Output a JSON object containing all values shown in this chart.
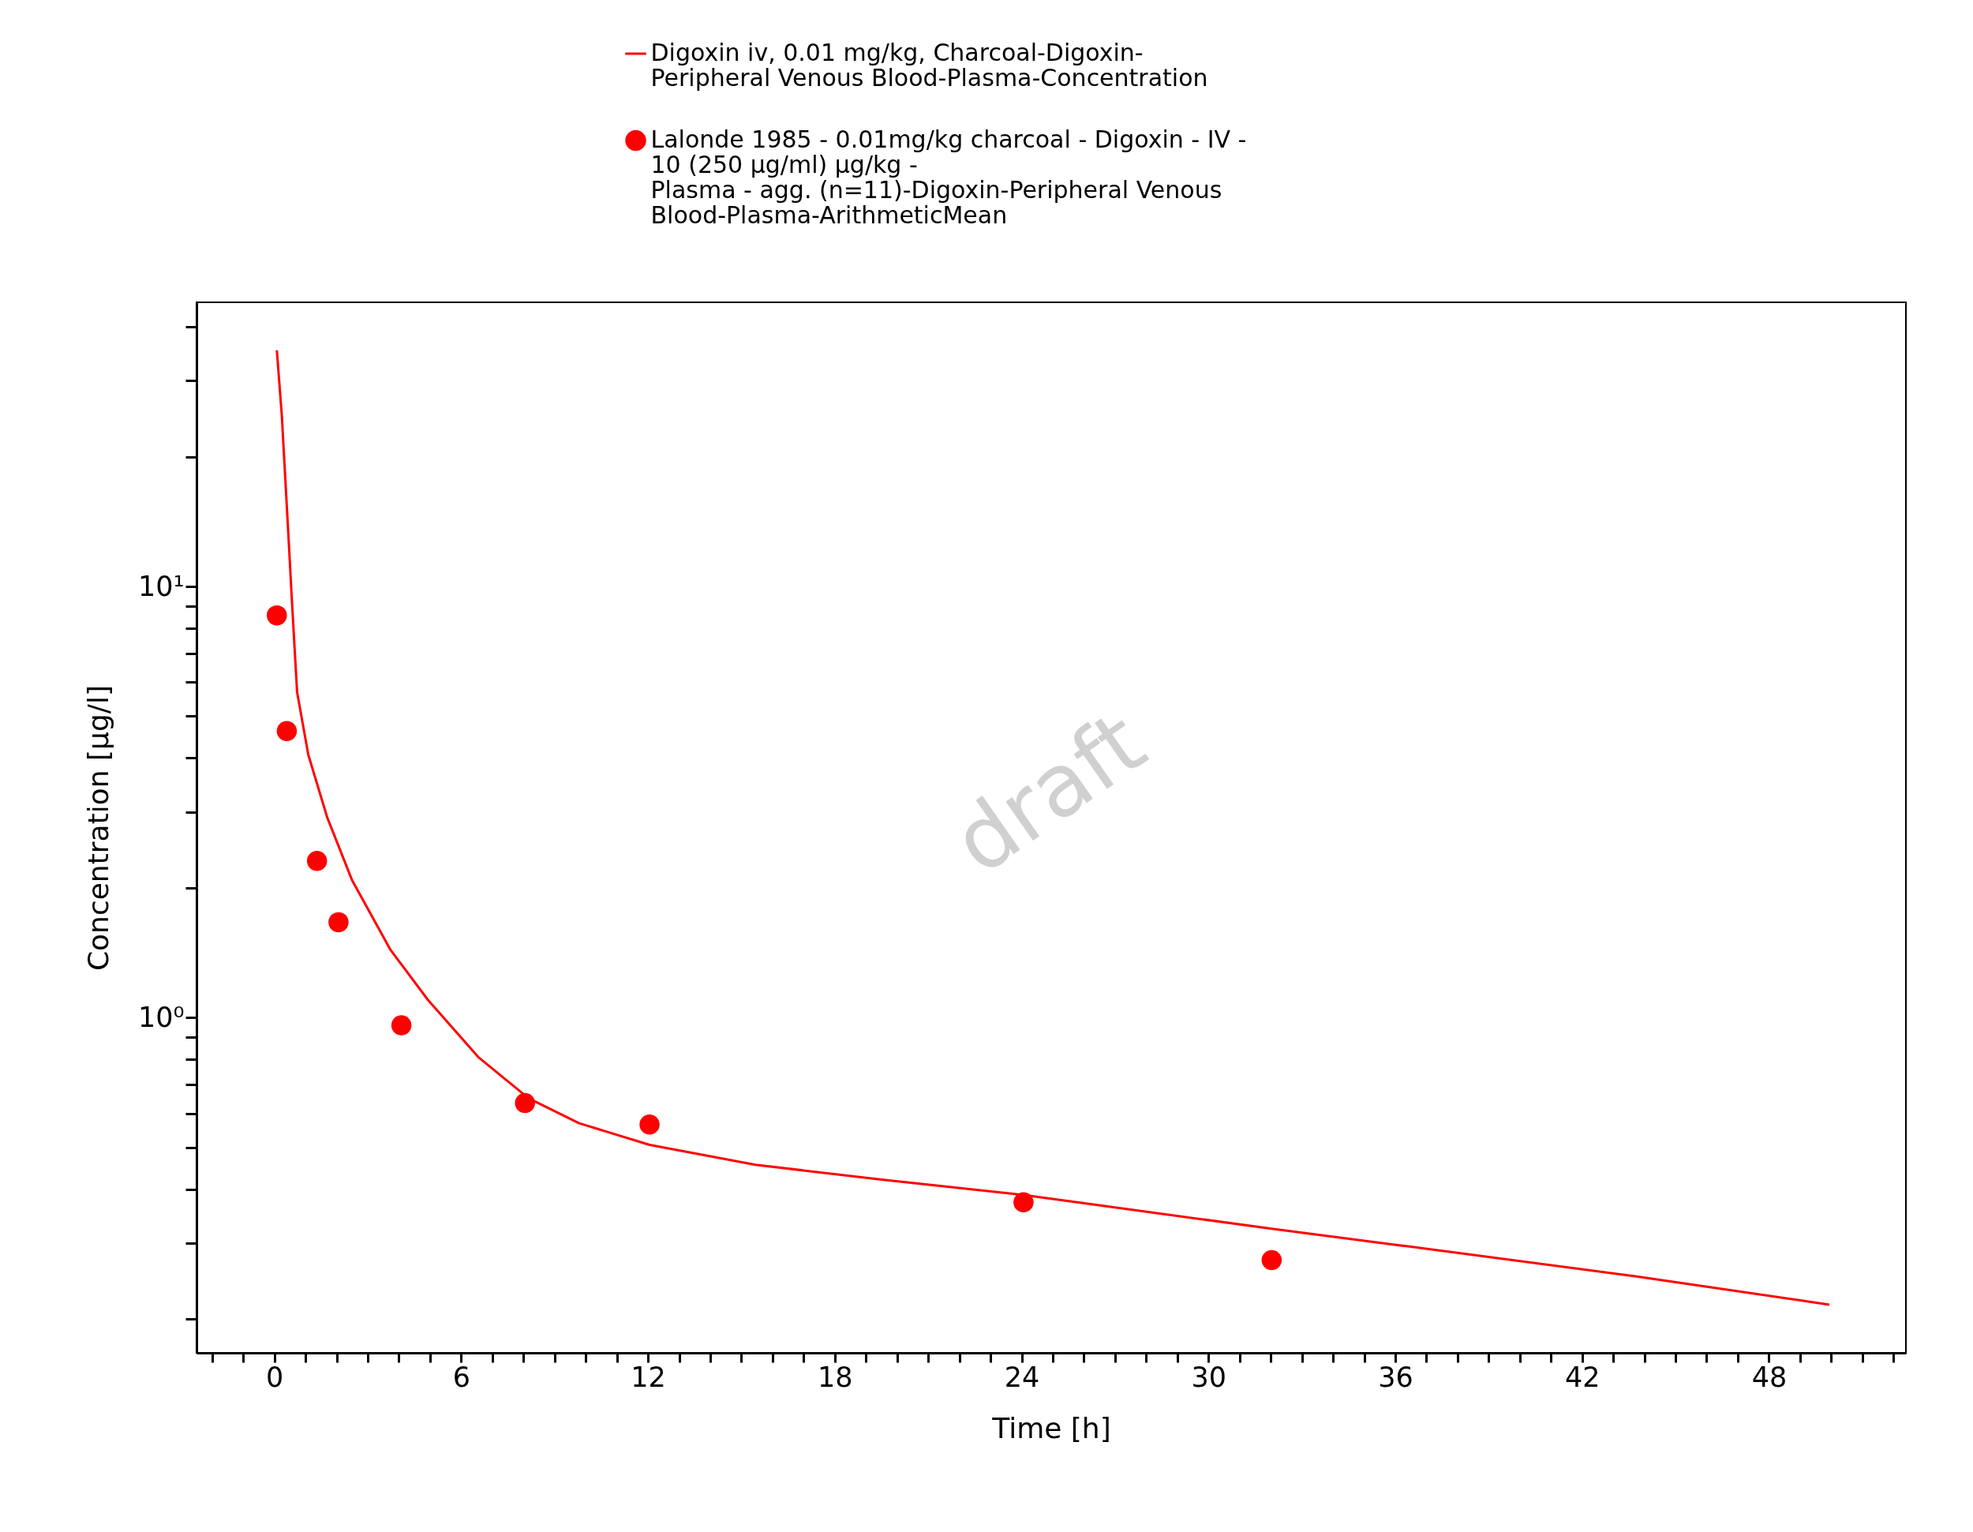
{
  "chart_data": {
    "type": "line",
    "xlabel": "Time [h]",
    "ylabel": "Concentration [µg/l]",
    "log": "y",
    "legend": "top",
    "grid": false,
    "xlim": [
      -2.5,
      52.4
    ],
    "ylim": [
      0.167,
      45.6
    ],
    "xticks": [
      {
        "value": -2,
        "label": null
      },
      {
        "value": -1,
        "label": null
      },
      0,
      {
        "value": 1,
        "label": null
      },
      {
        "value": 2,
        "label": null
      },
      {
        "value": 3,
        "label": null
      },
      {
        "value": 4,
        "label": null
      },
      {
        "value": 5,
        "label": null
      },
      6,
      {
        "value": 7,
        "label": null
      },
      {
        "value": 8,
        "label": null
      },
      {
        "value": 9,
        "label": null
      },
      {
        "value": 10,
        "label": null
      },
      {
        "value": 11,
        "label": null
      },
      12,
      {
        "value": 13,
        "label": null
      },
      {
        "value": 14,
        "label": null
      },
      {
        "value": 15,
        "label": null
      },
      {
        "value": 16,
        "label": null
      },
      {
        "value": 17,
        "label": null
      },
      18,
      {
        "value": 19,
        "label": null
      },
      {
        "value": 20,
        "label": null
      },
      {
        "value": 21,
        "label": null
      },
      {
        "value": 22,
        "label": null
      },
      {
        "value": 23,
        "label": null
      },
      24,
      {
        "value": 25,
        "label": null
      },
      {
        "value": 26,
        "label": null
      },
      {
        "value": 27,
        "label": null
      },
      {
        "value": 28,
        "label": null
      },
      {
        "value": 29,
        "label": null
      },
      30,
      {
        "value": 31,
        "label": null
      },
      {
        "value": 32,
        "label": null
      },
      {
        "value": 33,
        "label": null
      },
      {
        "value": 34,
        "label": null
      },
      {
        "value": 35,
        "label": null
      },
      36,
      {
        "value": 37,
        "label": null
      },
      {
        "value": 38,
        "label": null
      },
      {
        "value": 39,
        "label": null
      },
      {
        "value": 40,
        "label": null
      },
      {
        "value": 41,
        "label": null
      },
      42,
      {
        "value": 43,
        "label": null
      },
      {
        "value": 44,
        "label": null
      },
      {
        "value": 45,
        "label": null
      },
      {
        "value": 46,
        "label": null
      },
      {
        "value": 47,
        "label": null
      },
      48,
      {
        "value": 49,
        "label": null
      },
      {
        "value": 50,
        "label": null
      },
      {
        "value": 51,
        "label": null
      },
      {
        "value": 52,
        "label": null
      }
    ],
    "yticks": [
      {
        "value": 0.2,
        "label": null
      },
      {
        "value": 0.3,
        "label": null
      },
      {
        "value": 0.4,
        "label": null
      },
      {
        "value": 0.5,
        "label": null
      },
      {
        "value": 0.6,
        "label": null
      },
      {
        "value": 0.7,
        "label": null
      },
      {
        "value": 0.8,
        "label": null
      },
      {
        "value": 0.9,
        "label": null
      },
      {
        "value": 1,
        "label": "10⁰"
      },
      {
        "value": 2,
        "label": null
      },
      {
        "value": 3,
        "label": null
      },
      {
        "value": 4,
        "label": null
      },
      {
        "value": 5,
        "label": null
      },
      {
        "value": 6,
        "label": null
      },
      {
        "value": 7,
        "label": null
      },
      {
        "value": 8,
        "label": null
      },
      {
        "value": 9,
        "label": null
      },
      {
        "value": 10,
        "label": "10¹"
      },
      {
        "value": 20,
        "label": null
      },
      {
        "value": 30,
        "label": null
      },
      {
        "value": 40,
        "label": null
      }
    ],
    "series": [
      {
        "name": "Digoxin iv, 0.01 mg/kg, Charcoal-Digoxin-\nPeripheral Venous Blood-Plasma-Concentration",
        "color": "#ff0000",
        "line_style": "solid",
        "marker": "none",
        "x": [
          0.08,
          0.24,
          0.44,
          0.57,
          0.73,
          1.09,
          1.7,
          2.5,
          3.72,
          4.93,
          6.55,
          8.17,
          9.79,
          12.05,
          15.45,
          19.5,
          24.06,
          32.03,
          36.07,
          43.75,
          49.94
        ],
        "values": [
          35.3,
          24.9,
          13.6,
          9.1,
          5.69,
          4.07,
          2.91,
          2.08,
          1.44,
          1.1,
          0.81,
          0.65,
          0.569,
          0.507,
          0.456,
          0.421,
          0.388,
          0.324,
          0.297,
          0.251,
          0.216
        ]
      },
      {
        "name": "Lalonde 1985 - 0.01mg/kg charcoal - Digoxin - IV -\n10 (250 µg/ml) µg/kg -\nPlasma - agg. (n=11)-Digoxin-Peripheral Venous\nBlood-Plasma-ArithmeticMean",
        "type": "scatter",
        "color": "#ff0000",
        "marker": "circle",
        "x": [
          0.08,
          0.4,
          1.37,
          2.06,
          4.08,
          8.05,
          12.05,
          24.06,
          32.03
        ],
        "values": [
          8.57,
          4.62,
          2.31,
          1.665,
          0.96,
          0.634,
          0.565,
          0.373,
          0.274
        ]
      }
    ],
    "annotations": [
      "draft"
    ]
  }
}
